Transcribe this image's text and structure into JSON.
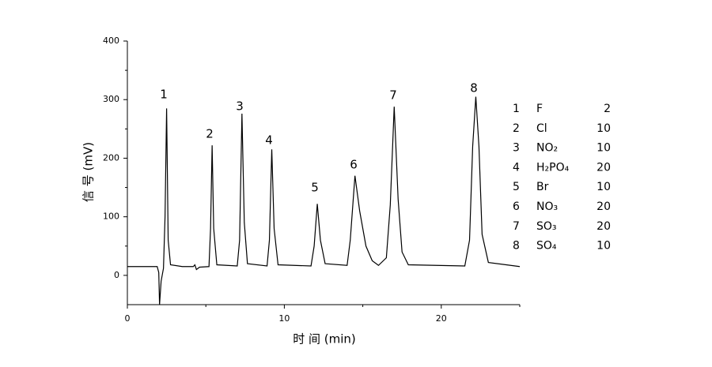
{
  "chart_data": {
    "type": "line",
    "xlabel": "时 间 (min)",
    "ylabel": "信 号 (mV)",
    "xlim": [
      0,
      25
    ],
    "xticks": [
      0,
      10,
      20
    ],
    "xminorticks": [
      5,
      15,
      25
    ],
    "ylim": [
      -50,
      400
    ],
    "yticks": [
      0,
      100,
      200,
      300,
      400
    ],
    "yminorticks": [
      50,
      150,
      250,
      350
    ],
    "color": "#000000",
    "x": [
      0,
      1.9,
      2.0,
      2.05,
      2.15,
      2.3,
      2.4,
      2.5,
      2.6,
      2.75,
      3.5,
      4.2,
      4.3,
      4.4,
      4.6,
      5.2,
      5.3,
      5.4,
      5.5,
      5.7,
      7.0,
      7.15,
      7.3,
      7.45,
      7.65,
      8.9,
      9.05,
      9.2,
      9.35,
      9.6,
      11.7,
      11.9,
      12.1,
      12.3,
      12.6,
      14.0,
      14.2,
      14.5,
      14.8,
      15.2,
      15.6,
      16.0,
      16.5,
      16.75,
      17.0,
      17.25,
      17.5,
      17.9,
      21.5,
      21.8,
      22.0,
      22.2,
      22.4,
      22.6,
      23.0,
      25
    ],
    "values": [
      15,
      15,
      5,
      -50,
      -10,
      12,
      100,
      285,
      60,
      18,
      15,
      15,
      18,
      10,
      14,
      15,
      80,
      222,
      80,
      18,
      16,
      60,
      276,
      90,
      20,
      16,
      60,
      215,
      80,
      18,
      16,
      50,
      122,
      60,
      20,
      17,
      60,
      170,
      110,
      50,
      25,
      17,
      30,
      120,
      288,
      130,
      40,
      18,
      16,
      60,
      220,
      305,
      220,
      70,
      22,
      15
    ],
    "peak_labels": [
      "1",
      "2",
      "3",
      "4",
      "5",
      "6",
      "7",
      "8"
    ],
    "legend_table": [
      {
        "number": 1,
        "ion": "F",
        "concentration": 2
      },
      {
        "number": 2,
        "ion": "Cl",
        "concentration": 10
      },
      {
        "number": 3,
        "ion": "NO₂",
        "concentration": 10
      },
      {
        "number": 4,
        "ion": "H₂PO₄",
        "concentration": 20
      },
      {
        "number": 5,
        "ion": "Br",
        "concentration": 10
      },
      {
        "number": 6,
        "ion": "NO₃",
        "concentration": 20
      },
      {
        "number": 7,
        "ion": "SO₃",
        "concentration": 20
      },
      {
        "number": 8,
        "ion": "SO₄",
        "concentration": 10
      }
    ]
  }
}
